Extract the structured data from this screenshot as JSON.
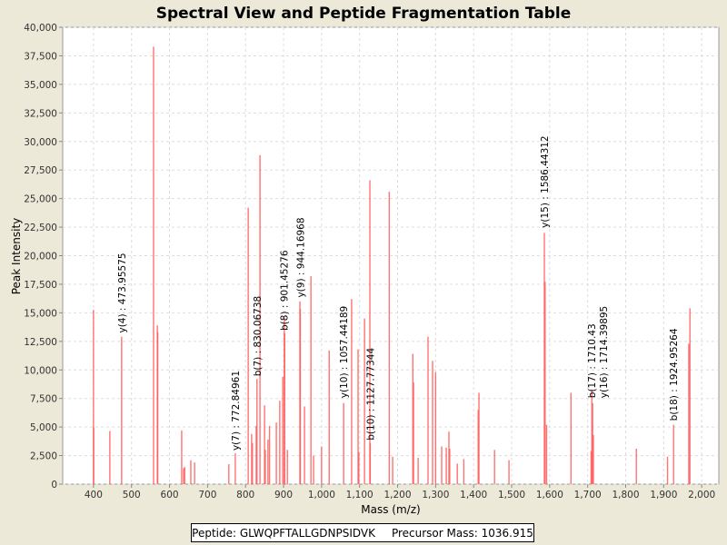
{
  "chart_data": {
    "type": "bar",
    "title": "Spectral View and Peptide Fragmentation Table",
    "xlabel": "Mass (m/z)",
    "ylabel": "Peak Intensity",
    "xlim": [
      319,
      2045
    ],
    "ylim": [
      0,
      40000
    ],
    "grid": true,
    "bar_color": "#FF5A5A",
    "x_ticks": [
      400,
      500,
      600,
      700,
      800,
      900,
      1000,
      1100,
      1200,
      1300,
      1400,
      1500,
      1600,
      1700,
      1800,
      1900,
      2000
    ],
    "x_tick_labels": [
      "400",
      "500",
      "600",
      "700",
      "800",
      "900",
      "1,000",
      "1,100",
      "1,200",
      "1,300",
      "1,400",
      "1,500",
      "1,600",
      "1,700",
      "1,800",
      "1,900",
      "2,000"
    ],
    "y_ticks": [
      0,
      2500,
      5000,
      7500,
      10000,
      12500,
      15000,
      17500,
      20000,
      22500,
      25000,
      27500,
      30000,
      32500,
      35000,
      37500,
      40000
    ],
    "y_tick_labels": [
      "0",
      "2,500",
      "5,000",
      "7,500",
      "10,000",
      "12,500",
      "15,000",
      "17,500",
      "20,000",
      "22,500",
      "25,000",
      "27,500",
      "30,000",
      "32,500",
      "35,000",
      "37,500",
      "40,000"
    ],
    "peaks": [
      [
        400,
        15250
      ],
      [
        400.5,
        4950
      ],
      [
        443,
        4650
      ],
      [
        474,
        12900
      ],
      [
        558,
        38300
      ],
      [
        568,
        13900
      ],
      [
        569,
        13300
      ],
      [
        632,
        4700
      ],
      [
        637,
        1400
      ],
      [
        640,
        1500
      ],
      [
        656,
        2100
      ],
      [
        666,
        1900
      ],
      [
        756,
        1750
      ],
      [
        773,
        2700
      ],
      [
        807,
        24200
      ],
      [
        816,
        4400
      ],
      [
        818,
        3600
      ],
      [
        828,
        5100
      ],
      [
        830,
        9200
      ],
      [
        838,
        28800
      ],
      [
        850,
        6900
      ],
      [
        852,
        3000
      ],
      [
        859,
        3900
      ],
      [
        863,
        5100
      ],
      [
        881,
        5400
      ],
      [
        890,
        7300
      ],
      [
        898,
        9400
      ],
      [
        902,
        14600
      ],
      [
        903,
        13200
      ],
      [
        910,
        3000
      ],
      [
        943,
        16000
      ],
      [
        944,
        15300
      ],
      [
        955,
        6800
      ],
      [
        972,
        18200
      ],
      [
        979,
        2500
      ],
      [
        1000,
        3300
      ],
      [
        1020,
        11700
      ],
      [
        1058,
        7100
      ],
      [
        1079,
        16200
      ],
      [
        1096,
        11800
      ],
      [
        1098,
        2800
      ],
      [
        1113,
        14500
      ],
      [
        1127,
        26600
      ],
      [
        1128,
        3600
      ],
      [
        1178,
        25600
      ],
      [
        1187,
        2400
      ],
      [
        1240,
        11400
      ],
      [
        1242,
        8900
      ],
      [
        1254,
        2300
      ],
      [
        1280,
        12900
      ],
      [
        1292,
        10800
      ],
      [
        1300,
        9800
      ],
      [
        1316,
        3300
      ],
      [
        1328,
        3200
      ],
      [
        1335,
        4600
      ],
      [
        1337,
        3100
      ],
      [
        1357,
        1800
      ],
      [
        1374,
        2200
      ],
      [
        1412,
        6500
      ],
      [
        1414,
        8000
      ],
      [
        1455,
        3000
      ],
      [
        1493,
        2100
      ],
      [
        1586,
        22000
      ],
      [
        1588,
        17700
      ],
      [
        1592,
        5200
      ],
      [
        1656,
        8000
      ],
      [
        1709,
        2900
      ],
      [
        1711,
        8300
      ],
      [
        1713,
        7100
      ],
      [
        1715,
        4300
      ],
      [
        1828,
        3100
      ],
      [
        1910,
        2400
      ],
      [
        1926,
        5200
      ],
      [
        1966,
        12300
      ],
      [
        1969,
        15400
      ]
    ],
    "annotations": [
      {
        "label": "y(4) : 473.95575",
        "x": 473.96,
        "y": 13000
      },
      {
        "label": "y(7) : 772.84961",
        "x": 772.85,
        "y": 2700
      },
      {
        "label": "b(7) : 830.06738",
        "x": 830.07,
        "y": 9200
      },
      {
        "label": "b(8) : 901.45276",
        "x": 901.45,
        "y": 13200
      },
      {
        "label": "y(9) : 944.16968",
        "x": 944.17,
        "y": 16100
      },
      {
        "label": "y(10) : 1057.44189",
        "x": 1057.44,
        "y": 7300
      },
      {
        "label": "b(10) : 1127.77344",
        "x": 1127.77,
        "y": 3600
      },
      {
        "label": "y(15) : 1586.44312",
        "x": 1586.44,
        "y": 22200
      },
      {
        "label": "b(17) : 1710.43",
        "x": 1710.4,
        "y": 7300
      },
      {
        "label": "y(16) : 1714.39895",
        "x": 1714.4,
        "y": 7300
      },
      {
        "label": "b(18) : 1924.95264",
        "x": 1924.95,
        "y": 5300
      }
    ]
  },
  "legend": {
    "peptide": "Peptide: GLWQPFTALLGDNPSIDVK",
    "precursor": "Precursor Mass: 1036.915"
  }
}
